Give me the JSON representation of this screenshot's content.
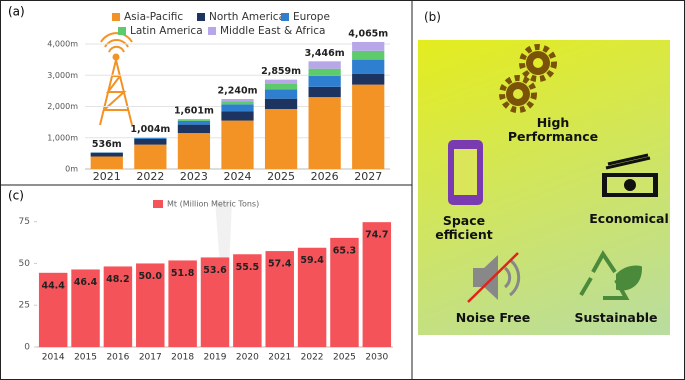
{
  "chart_data": [
    {
      "type": "bar",
      "stacked": true,
      "label": "(a)",
      "categories": [
        "2021",
        "2022",
        "2023",
        "2024",
        "2025",
        "2026",
        "2027"
      ],
      "series": [
        {
          "name": "Asia-Pacific",
          "color": "#f39325",
          "values": [
            400,
            780,
            1150,
            1550,
            1920,
            2300,
            2700
          ]
        },
        {
          "name": "North America",
          "color": "#1d3461",
          "values": [
            120,
            180,
            270,
            300,
            330,
            330,
            350
          ]
        },
        {
          "name": "Europe",
          "color": "#2f7fd1",
          "values": [
            10,
            30,
            120,
            220,
            300,
            350,
            450
          ]
        },
        {
          "name": "Latin America",
          "color": "#5dcb6b",
          "values": [
            4,
            10,
            40,
            100,
            170,
            230,
            280
          ]
        },
        {
          "name": "Middle East & Africa",
          "color": "#b7a6e8",
          "values": [
            2,
            4,
            21,
            70,
            139,
            236,
            285
          ]
        }
      ],
      "totals": [
        536,
        1004,
        1601,
        2240,
        2859,
        3446,
        4065
      ],
      "total_labels": [
        "536m",
        "1,004m",
        "1,601m",
        "2,240m",
        "2,859m",
        "3,446m",
        "4,065m"
      ],
      "ylim": [
        0,
        4000
      ],
      "yticks": [
        {
          "value": 0,
          "label": "0m"
        },
        {
          "value": 1000,
          "label": "1,000m"
        },
        {
          "value": 2000,
          "label": "2,000m"
        },
        {
          "value": 3000,
          "label": "3,000m"
        },
        {
          "value": 4000,
          "label": "4,000m"
        }
      ],
      "grid": true
    },
    {
      "type": "bar",
      "stacked": false,
      "label": "(c)",
      "categories": [
        "2014",
        "2015",
        "2016",
        "2017",
        "2018",
        "2019",
        "2020",
        "2021",
        "2022",
        "2025",
        "2030"
      ],
      "series": [
        {
          "name": "Mt (Million Metric Tons)",
          "color": "#f5535a",
          "values": [
            44.4,
            46.4,
            48.2,
            50,
            51.8,
            53.6,
            55.5,
            57.4,
            59.4,
            65.3,
            74.7
          ],
          "value_labels": [
            "44.4",
            "46.4",
            "48.2",
            "50.0",
            "51.8",
            "53.6",
            "55.5",
            "57.4",
            "59.4",
            "65.3",
            "74.7"
          ]
        }
      ],
      "ylim": [
        0,
        76
      ],
      "yticks": [
        0,
        25,
        50,
        75
      ],
      "grid": false
    }
  ],
  "panel_b": {
    "label": "(b)",
    "items": [
      {
        "label": "High Performance"
      },
      {
        "label": "Space efficient"
      },
      {
        "label": "Economical"
      },
      {
        "label": "Noise Free"
      },
      {
        "label": "Sustainable"
      }
    ]
  }
}
